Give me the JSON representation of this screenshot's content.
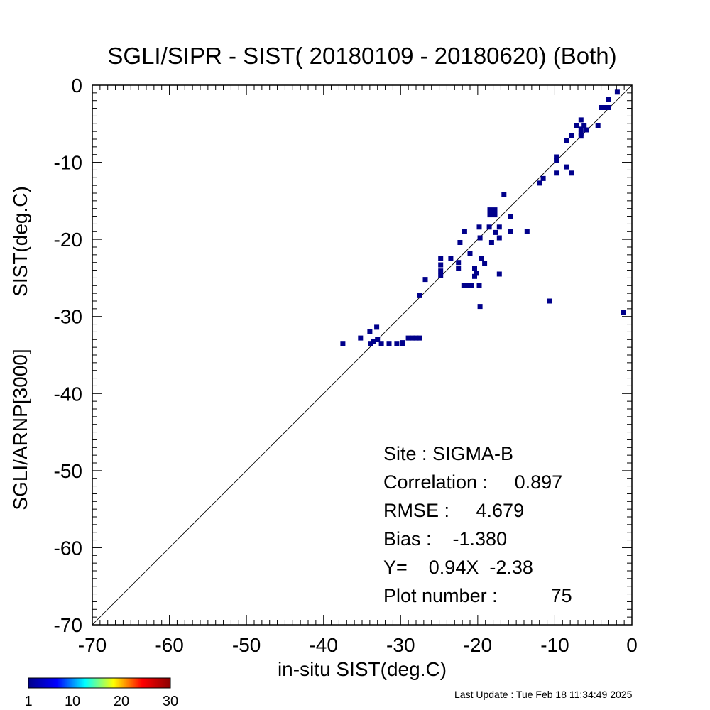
{
  "chart_data": {
    "type": "scatter",
    "title": "SGLI/SIPR - SIST( 20180109 - 20180620) (Both)",
    "xlabel": "in-situ SIST(deg.C)",
    "ylabel_lines": [
      "SGLI/ARNP[3000]",
      "SIST(deg.C)"
    ],
    "xlim": [
      -70,
      0
    ],
    "ylim": [
      -70,
      0
    ],
    "x_ticks": [
      -70,
      -60,
      -50,
      -40,
      -30,
      -20,
      -10,
      0
    ],
    "y_ticks": [
      -70,
      -60,
      -50,
      -40,
      -30,
      -20,
      -10,
      0
    ],
    "x_tick_labels": [
      "-70",
      "-60",
      "-50",
      "-40",
      "-30",
      "-20",
      "-10",
      "0"
    ],
    "y_tick_labels": [
      "-70",
      "-60",
      "-50",
      "-40",
      "-30",
      "-20",
      "-10",
      "0"
    ],
    "reference_line": "y = x",
    "grid": false,
    "marker_color": "#00008b",
    "points": [
      {
        "x": -37.5,
        "y": -33.5
      },
      {
        "x": -35.2,
        "y": -32.8
      },
      {
        "x": -34,
        "y": -32
      },
      {
        "x": -33.9,
        "y": -33.5
      },
      {
        "x": -33.5,
        "y": -33.2
      },
      {
        "x": -33.1,
        "y": -31.4
      },
      {
        "x": -33,
        "y": -33
      },
      {
        "x": -32.5,
        "y": -33.5
      },
      {
        "x": -31.5,
        "y": -33.5
      },
      {
        "x": -30.5,
        "y": -33.5
      },
      {
        "x": -29.8,
        "y": -33.5
      },
      {
        "x": -29.7,
        "y": -33.4
      },
      {
        "x": -29,
        "y": -32.8
      },
      {
        "x": -28.5,
        "y": -32.8
      },
      {
        "x": -28,
        "y": -32.8
      },
      {
        "x": -27.5,
        "y": -32.8
      },
      {
        "x": -27.5,
        "y": -27.3
      },
      {
        "x": -26.8,
        "y": -25.2
      },
      {
        "x": -24.8,
        "y": -22.5
      },
      {
        "x": -24.8,
        "y": -23.3
      },
      {
        "x": -24.8,
        "y": -24.1
      },
      {
        "x": -24.8,
        "y": -24.7
      },
      {
        "x": -23.5,
        "y": -22.5
      },
      {
        "x": -22.5,
        "y": -23
      },
      {
        "x": -22.5,
        "y": -23.8
      },
      {
        "x": -22.3,
        "y": -20.4
      },
      {
        "x": -21.7,
        "y": -19
      },
      {
        "x": -21.8,
        "y": -26
      },
      {
        "x": -21.2,
        "y": -26
      },
      {
        "x": -20.8,
        "y": -26
      },
      {
        "x": -21,
        "y": -21.8
      },
      {
        "x": -20.4,
        "y": -23.8
      },
      {
        "x": -20.2,
        "y": -24.4
      },
      {
        "x": -20.4,
        "y": -24.8
      },
      {
        "x": -19.8,
        "y": -18.4
      },
      {
        "x": -19.7,
        "y": -19.8
      },
      {
        "x": -19.5,
        "y": -22.5
      },
      {
        "x": -19.8,
        "y": -26
      },
      {
        "x": -19.7,
        "y": -28.7
      },
      {
        "x": -19.1,
        "y": -23.1
      },
      {
        "x": -18.5,
        "y": -18.4
      },
      {
        "x": -18.2,
        "y": -20.4
      },
      {
        "x": -18.1,
        "y": -16.5
      },
      {
        "x": -17.7,
        "y": -19.1
      },
      {
        "x": -17.2,
        "y": -18.4
      },
      {
        "x": -17.2,
        "y": -19.8
      },
      {
        "x": -17.2,
        "y": -24.5
      },
      {
        "x": -16.6,
        "y": -14.2
      },
      {
        "x": -15.8,
        "y": -17
      },
      {
        "x": -15.8,
        "y": -19
      },
      {
        "x": -13.6,
        "y": -19
      },
      {
        "x": -12,
        "y": -12.7
      },
      {
        "x": -11.5,
        "y": -12.1
      },
      {
        "x": -10.7,
        "y": -28
      },
      {
        "x": -9.8,
        "y": -9.3
      },
      {
        "x": -9.8,
        "y": -9.8
      },
      {
        "x": -9.8,
        "y": -11.4
      },
      {
        "x": -8.5,
        "y": -7.2
      },
      {
        "x": -8.5,
        "y": -10.6
      },
      {
        "x": -7.8,
        "y": -6.5
      },
      {
        "x": -7.8,
        "y": -11.4
      },
      {
        "x": -7.2,
        "y": -5.2
      },
      {
        "x": -6.6,
        "y": -4.5
      },
      {
        "x": -6.6,
        "y": -5.7
      },
      {
        "x": -6.6,
        "y": -6.2
      },
      {
        "x": -6.6,
        "y": -6.6
      },
      {
        "x": -6.2,
        "y": -5.2
      },
      {
        "x": -5.9,
        "y": -5.8
      },
      {
        "x": -4.4,
        "y": -5.2
      },
      {
        "x": -4,
        "y": -2.9
      },
      {
        "x": -3.5,
        "y": -2.9
      },
      {
        "x": -3,
        "y": -2.9
      },
      {
        "x": -3,
        "y": -1.8
      },
      {
        "x": -1.9,
        "y": -0.9
      },
      {
        "x": -1.1,
        "y": -29.5
      }
    ],
    "dense_cells": [
      {
        "x": -18.1,
        "y": -16.5
      }
    ],
    "stats_lines": [
      "Site : SIGMA-B",
      "Correlation :     0.897",
      "RMSE :     4.679",
      "Bias :    -1.380",
      "Y=    0.94X  -2.38",
      "Plot number :          75"
    ],
    "colorbar": {
      "min": 1,
      "max": 30,
      "tick_labels": [
        "1",
        "10",
        "20",
        "30"
      ],
      "colors": [
        "#00008b",
        "#0000ff",
        "#00ffff",
        "#ffff00",
        "#ff0000",
        "#8b0000"
      ]
    }
  },
  "footer": {
    "last_update": "Last Update : Tue Feb 18 11:34:49 2025"
  }
}
